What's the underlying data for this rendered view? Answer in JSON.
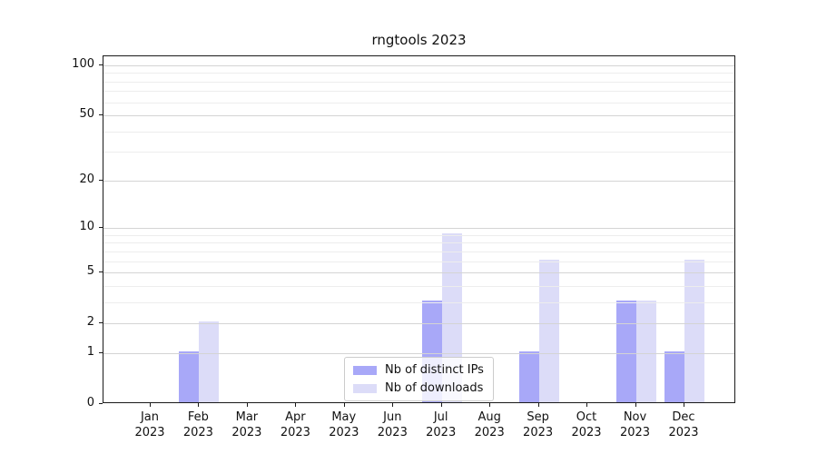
{
  "title": "rngtools 2023",
  "chart_data": {
    "type": "bar",
    "title": "rngtools 2023",
    "categories": [
      "Jan",
      "Feb",
      "Mar",
      "Apr",
      "May",
      "Jun",
      "Jul",
      "Aug",
      "Sep",
      "Oct",
      "Nov",
      "Dec"
    ],
    "x_tick_second_line": "2023",
    "series": [
      {
        "name": "Nb of distinct IPs",
        "color": "#a8a8f8",
        "values": [
          0,
          1,
          0,
          0,
          0,
          0,
          3,
          0,
          1,
          0,
          3,
          1
        ]
      },
      {
        "name": "Nb of downloads",
        "color": "#dcdcf8",
        "values": [
          0,
          2,
          0,
          0,
          0,
          0,
          9,
          0,
          6,
          0,
          3,
          6
        ]
      }
    ],
    "yscale": "log1p",
    "y_ticks": [
      0,
      1,
      2,
      5,
      10,
      20,
      50,
      100
    ],
    "y_minor_gridlines": [
      3,
      4,
      6,
      7,
      8,
      9,
      30,
      40,
      60,
      70,
      80,
      90
    ],
    "ylim": [
      0,
      113
    ],
    "grid": true,
    "legend_position": "lower center inside axes"
  },
  "colors": {
    "bar_distinct_ips": "#a8a8f8",
    "bar_downloads": "#dcdcf8",
    "major_grid": "#d4d4d4",
    "minor_grid": "#ededed",
    "spine": "#1a1a1a",
    "legend_border": "#cccccc"
  }
}
